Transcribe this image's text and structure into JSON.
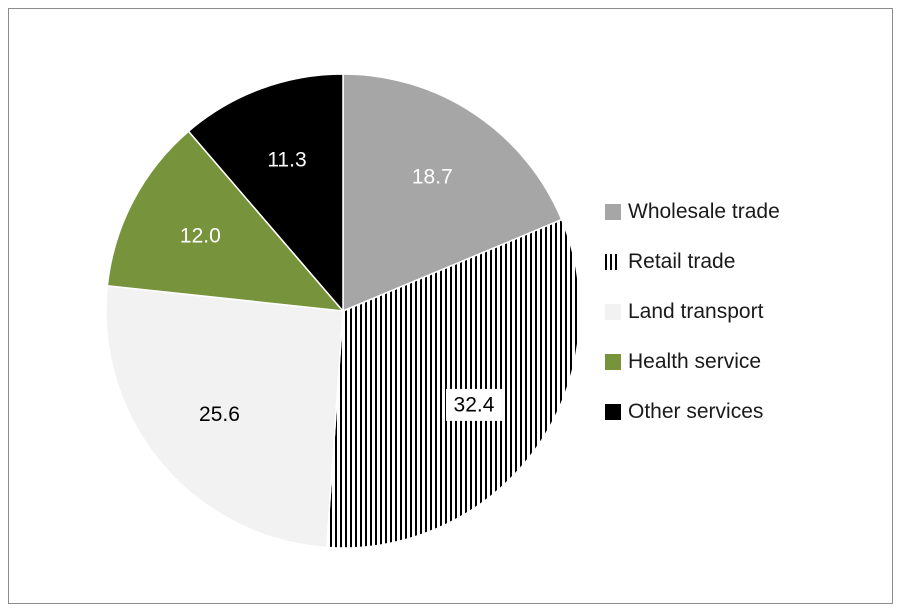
{
  "chart_data": {
    "type": "pie",
    "title": "",
    "categories": [
      "Wholesale trade",
      "Retail trade",
      "Land transport",
      "Health service",
      "Other services"
    ],
    "values": [
      18.7,
      32.4,
      25.6,
      12.0,
      11.3
    ],
    "value_labels": [
      "18.7",
      "32.4",
      "25.6",
      "12.0",
      "11.3"
    ],
    "colors": [
      "#a6a6a6",
      "#000000",
      "#f2f2f2",
      "#77933c",
      "#000000"
    ],
    "fills": [
      "solid",
      "vertical-stripes",
      "solid",
      "solid",
      "solid"
    ],
    "label_colors": [
      "#ffffff",
      "#000000",
      "#000000",
      "#ffffff",
      "#ffffff"
    ],
    "start_angle": "12 o'clock",
    "direction": "clockwise",
    "legend_position": "right"
  }
}
